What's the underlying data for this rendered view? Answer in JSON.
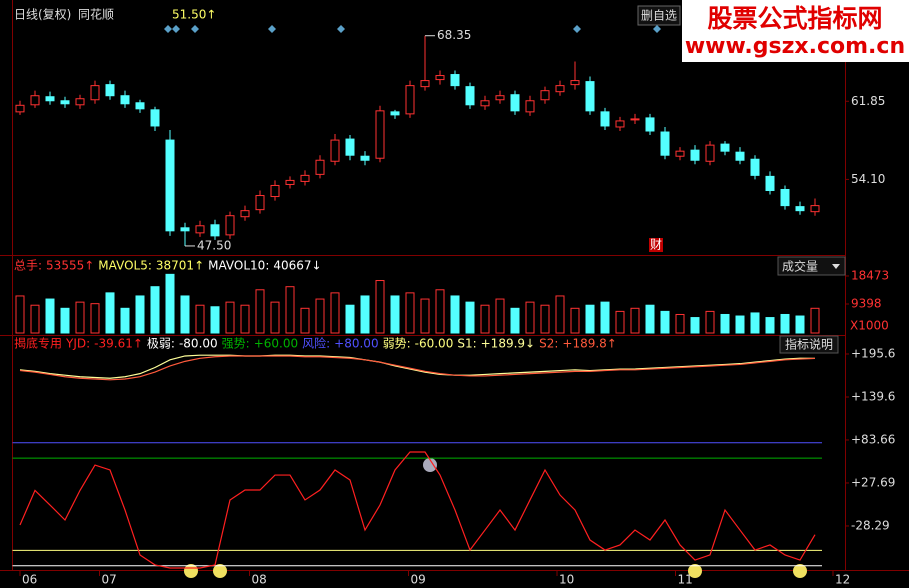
{
  "toolbar": {
    "period": "日线(复权)",
    "source": "同花顺",
    "price": "51.50↑",
    "button": "删自选"
  },
  "watermark": {
    "title": "股票公式指标网",
    "url": "www.gszx.com.cn"
  },
  "chart_data": [
    {
      "type": "candlestick",
      "up_color": "#ff3232",
      "down_color": "#54ffff",
      "open": [
        60.8,
        61.5,
        62.3,
        61.9,
        61.5,
        62.0,
        63.5,
        62.4,
        61.7,
        61.0,
        58.0,
        49.3,
        48.8,
        49.6,
        48.6,
        50.4,
        51.1,
        52.4,
        53.6,
        53.9,
        54.6,
        55.9,
        58.1,
        56.4,
        56.2,
        60.8,
        60.6,
        63.3,
        64.0,
        64.5,
        63.3,
        61.4,
        62.0,
        62.5,
        60.8,
        62.0,
        62.8,
        63.5,
        63.8,
        60.8,
        59.3,
        60.0,
        60.2,
        58.8,
        56.4,
        57.0,
        55.9,
        57.6,
        56.8,
        56.1,
        54.4,
        53.1,
        51.4,
        50.9
      ],
      "high": [
        61.9,
        62.9,
        62.8,
        62.3,
        62.5,
        63.9,
        63.9,
        62.9,
        62.0,
        61.3,
        59.0,
        49.8,
        50.0,
        50.1,
        50.9,
        51.5,
        53.0,
        54.0,
        54.4,
        55.0,
        56.5,
        58.6,
        58.5,
        56.9,
        61.4,
        61.0,
        63.9,
        68.35,
        64.9,
        64.9,
        63.7,
        62.4,
        62.9,
        62.9,
        62.4,
        63.3,
        63.9,
        65.8,
        64.3,
        61.2,
        60.3,
        60.6,
        60.6,
        59.3,
        57.3,
        57.5,
        57.9,
        57.9,
        57.3,
        56.5,
        54.9,
        53.5,
        51.9,
        52.2
      ],
      "low": [
        60.5,
        61.2,
        61.5,
        61.2,
        61.1,
        61.6,
        62.0,
        61.2,
        60.7,
        58.9,
        48.5,
        47.5,
        48.4,
        48.1,
        48.2,
        50.0,
        50.7,
        52.0,
        53.2,
        53.5,
        54.2,
        55.5,
        56.0,
        55.5,
        55.8,
        60.1,
        60.2,
        62.9,
        63.5,
        63.0,
        61.1,
        61.0,
        61.6,
        60.5,
        60.4,
        61.6,
        62.4,
        63.0,
        60.5,
        59.0,
        58.9,
        59.6,
        58.5,
        56.1,
        56.0,
        55.6,
        55.5,
        56.5,
        55.6,
        54.1,
        52.6,
        51.1,
        50.6,
        50.5
      ],
      "close": [
        61.45,
        62.4,
        61.9,
        61.6,
        62.1,
        63.4,
        62.4,
        61.6,
        61.1,
        59.4,
        49.0,
        49.0,
        49.5,
        48.5,
        50.5,
        51.0,
        52.5,
        53.5,
        54.0,
        54.5,
        56.0,
        58.0,
        56.5,
        56.0,
        60.9,
        60.5,
        63.4,
        63.9,
        64.4,
        63.4,
        61.5,
        61.9,
        62.4,
        60.9,
        61.9,
        62.9,
        63.4,
        63.9,
        60.9,
        59.4,
        59.9,
        60.1,
        58.9,
        56.5,
        56.9,
        56.0,
        57.5,
        56.9,
        56.0,
        54.5,
        53.0,
        51.5,
        51.0,
        51.5
      ],
      "ylim": [
        46.9,
        71.1
      ],
      "yticks": [
        61.85,
        {
          "value": 54.1,
          "label": "54.10"
        }
      ],
      "annotations": [
        {
          "x": 27,
          "value": 68.35,
          "label": "68.35"
        },
        {
          "x": 11,
          "value": 47.5,
          "label": "47.50"
        }
      ],
      "event_marker": "财"
    },
    {
      "type": "volume",
      "title": "成交量",
      "unit": "X1000",
      "legend": [
        {
          "name": "总手:",
          "value": 53555,
          "value_label": "53555↑",
          "color": "#ff3232"
        },
        {
          "name": "MAVOL5:",
          "value": 38701,
          "value_label": "38701↑",
          "color": "#ffff66"
        },
        {
          "name": "MAVOL10:",
          "value": 40667,
          "value_label": "40667↓",
          "color": "#ffffff"
        }
      ],
      "values": [
        12000,
        9000,
        11000,
        8000,
        10000,
        9500,
        13000,
        8000,
        12000,
        15000,
        19000,
        12000,
        9000,
        8500,
        10000,
        9000,
        14000,
        10000,
        15000,
        8000,
        11000,
        13000,
        9000,
        12000,
        17000,
        12000,
        13000,
        11000,
        14000,
        12000,
        10000,
        9000,
        11000,
        8000,
        10000,
        9000,
        12000,
        8000,
        9000,
        10000,
        7000,
        8000,
        9000,
        7000,
        6000,
        5000,
        7000,
        6000,
        5500,
        6500,
        5000,
        6000,
        5500,
        8000
      ],
      "ylim": [
        0,
        23000
      ],
      "yticks": [
        18473,
        9398
      ]
    },
    {
      "type": "line",
      "title": "揭底专用",
      "button": "指标说明",
      "series": [
        {
          "name": "YJD:",
          "color": "#ff2020",
          "value_label": "-39.61↑",
          "values": [
            -27,
            18,
            -1,
            -20.5,
            18,
            51,
            44.6,
            -7.5,
            -66,
            -79,
            -83,
            -83,
            -83,
            -79,
            5.6,
            18.5,
            18.5,
            38,
            38,
            5.6,
            18.5,
            44.6,
            31.6,
            -33.6,
            -1,
            44.6,
            68,
            68,
            38,
            -7.5,
            -59.6,
            -33.6,
            -7.5,
            -33.6,
            5.6,
            44.6,
            12,
            -7.5,
            -46.6,
            -59.6,
            -53,
            -33.6,
            -46.6,
            -20.5,
            -53,
            -72.6,
            -66,
            -7.5,
            -33.6,
            -59.6,
            -53,
            -66,
            -72.6,
            -39.61
          ]
        },
        {
          "name": "S1:",
          "color": "#ffff99",
          "value_label": "+189.9↓",
          "values": [
            175,
            173,
            170,
            168,
            166,
            165,
            164,
            166,
            170,
            178,
            188,
            193,
            194,
            194,
            194,
            193,
            193,
            194,
            194,
            193,
            193,
            192,
            191,
            188,
            185,
            180,
            176,
            172,
            169,
            168,
            168,
            169,
            170,
            171,
            172,
            173,
            174,
            175,
            174,
            175,
            176,
            176,
            177,
            178,
            179,
            180,
            181,
            182,
            183,
            185,
            187,
            189,
            190,
            189.9
          ]
        },
        {
          "name": "S2:",
          "color": "#ff5a3c",
          "value_label": "+189.8↑",
          "values": [
            174,
            172,
            169,
            166,
            164,
            163,
            162,
            163,
            166,
            172,
            180,
            186,
            190,
            192,
            193,
            193,
            193,
            193,
            193,
            192,
            192,
            191,
            190,
            188,
            185,
            181,
            177,
            173,
            170,
            168,
            167,
            167,
            168,
            169,
            170,
            171,
            172,
            173,
            173,
            174,
            175,
            175,
            176,
            177,
            178,
            179,
            180,
            181,
            182,
            184,
            186,
            188,
            189,
            189.8
          ]
        }
      ],
      "levels": [
        {
          "name": "极弱:",
          "value": -80,
          "value_label": "-80.00",
          "color": "#ffffff"
        },
        {
          "name": "强势:",
          "value": 60,
          "value_label": "+60.00",
          "color": "#00b000"
        },
        {
          "name": "风险:",
          "value": 80,
          "value_label": "+80.00",
          "color": "#5050ff"
        },
        {
          "name": "弱势:",
          "value": -60,
          "value_label": "-60.00",
          "color": "#ffff80"
        }
      ],
      "ylim": [
        -85.6,
        213.8
      ],
      "yticks": [
        {
          "value": 195.6,
          "label": "+195.6"
        },
        {
          "value": 139.6,
          "label": "+139.6"
        },
        {
          "value": 83.66,
          "label": "+83.66"
        },
        {
          "value": 27.69,
          "label": "+27.69"
        },
        -28.29
      ],
      "xlim": [
        -0.5,
        54.5
      ],
      "xticks": [
        {
          "value": 0,
          "label": "06"
        },
        {
          "value": 5.3,
          "label": "07"
        },
        {
          "value": 15.3,
          "label": "08"
        },
        {
          "value": 25.9,
          "label": "09"
        },
        {
          "value": 35.8,
          "label": "10"
        },
        {
          "value": 43.7,
          "label": "11"
        },
        {
          "value": 54.2,
          "label": "12"
        }
      ]
    }
  ]
}
